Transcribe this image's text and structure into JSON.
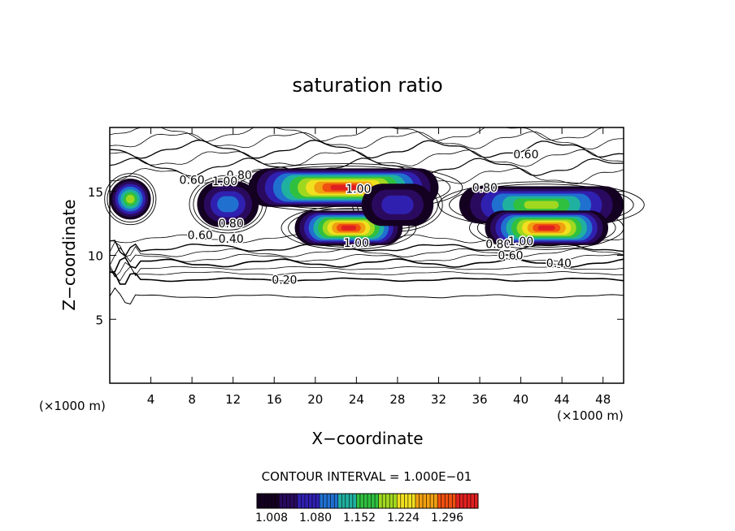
{
  "chart_data": {
    "type": "heatmap",
    "title": "saturation ratio",
    "xlabel": "X−coordinate",
    "ylabel": "Z−coordinate",
    "x_unit_left": "(×1000 m)",
    "x_unit_right": "(×1000 m)",
    "xlim": [
      0,
      50
    ],
    "ylim": [
      0,
      20
    ],
    "x_ticks": [
      4,
      8,
      12,
      16,
      20,
      24,
      28,
      32,
      36,
      40,
      44,
      48
    ],
    "y_ticks": [
      5,
      10,
      15
    ],
    "contour_interval_text": "CONTOUR INTERVAL = 1.000E−01",
    "colorbar": {
      "min": 1.008,
      "max": 1.32,
      "tick_labels": [
        "1.008",
        "1.080",
        "1.152",
        "1.224",
        "1.296"
      ],
      "colors": [
        "#140020",
        "#2a0a5e",
        "#3020b0",
        "#2070d0",
        "#20b0a0",
        "#30c040",
        "#a0d820",
        "#f0e020",
        "#f0a010",
        "#f05010",
        "#e02020"
      ]
    },
    "contour_labels": [
      {
        "text": "0.20",
        "x": 17.0,
        "y": 8.1
      },
      {
        "text": "0.40",
        "x": 43.7,
        "y": 9.4
      },
      {
        "text": "0.40",
        "x": 11.8,
        "y": 11.3
      },
      {
        "text": "0.60",
        "x": 39.0,
        "y": 10.0
      },
      {
        "text": "0.60",
        "x": 8.8,
        "y": 11.6
      },
      {
        "text": "0.60",
        "x": 40.5,
        "y": 17.9
      },
      {
        "text": "0.60",
        "x": 8.0,
        "y": 15.9
      },
      {
        "text": "0.80",
        "x": 36.5,
        "y": 15.3
      },
      {
        "text": "0.80",
        "x": 11.8,
        "y": 12.5
      },
      {
        "text": "0.80",
        "x": 12.6,
        "y": 16.3
      },
      {
        "text": "0.80",
        "x": 37.8,
        "y": 10.9
      },
      {
        "text": "1.00",
        "x": 11.2,
        "y": 15.8
      },
      {
        "text": "1.00",
        "x": 24.2,
        "y": 15.2
      },
      {
        "text": "1.00",
        "x": 24.0,
        "y": 11.0
      },
      {
        "text": "1.00",
        "x": 40.0,
        "y": 11.1
      }
    ],
    "supersaturated_regions": [
      {
        "x": [
          0.0,
          4.0
        ],
        "z": [
          12.8,
          16.0
        ],
        "peak": 1.2
      },
      {
        "x": [
          8.5,
          14.5
        ],
        "z": [
          12.2,
          15.8
        ],
        "peak": 1.1
      },
      {
        "x": [
          13.5,
          32.0
        ],
        "z": [
          13.8,
          16.8
        ],
        "peak": 1.31
      },
      {
        "x": [
          18.0,
          28.5
        ],
        "z": [
          10.8,
          13.5
        ],
        "peak": 1.32
      },
      {
        "x": [
          24.5,
          31.5
        ],
        "z": [
          12.3,
          15.6
        ],
        "peak": 1.06
      },
      {
        "x": [
          34.0,
          50.0
        ],
        "z": [
          12.5,
          15.4
        ],
        "peak": 1.2
      },
      {
        "x": [
          36.5,
          48.5
        ],
        "z": [
          10.8,
          13.5
        ],
        "peak": 1.32
      }
    ]
  }
}
